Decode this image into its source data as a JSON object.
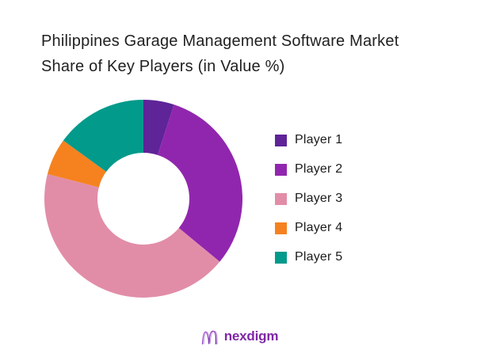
{
  "page": {
    "background": "#ffffff"
  },
  "title": {
    "lines": [
      "Philippines Garage Management Software Market",
      "Share of Key Players (in Value %)"
    ]
  },
  "chart_data": {
    "type": "pie",
    "subtype": "donut",
    "title": "Philippines Garage Management Software Market Share of Key Players (in Value %)",
    "unit": "value share %",
    "start_angle_deg": 0,
    "direction": "clockwise",
    "inner_radius_ratio": 0.46,
    "legend_position": "right",
    "grid": false,
    "segments": [
      {
        "label": "Player 1",
        "value": 5,
        "color": "#5e2498"
      },
      {
        "label": "Player 2",
        "value": 31,
        "color": "#9126ae"
      },
      {
        "label": "Player 3",
        "value": 43,
        "color": "#e28da8"
      },
      {
        "label": "Player 4",
        "value": 6,
        "color": "#f5821f"
      },
      {
        "label": "Player 5",
        "value": 15,
        "color": "#029a8b"
      }
    ]
  },
  "footer": {
    "brand_name": "nexdigm",
    "brand_color": "#7f27a6",
    "logo_gradient": [
      "#b härligt",
      "#6a1b9a"
    ]
  }
}
